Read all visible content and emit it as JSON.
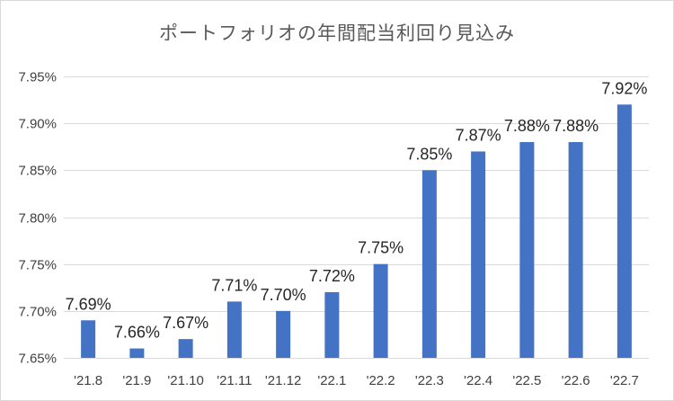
{
  "chart_data": {
    "type": "bar",
    "title": "ポートフォリオの年間配当利回り見込み",
    "categories": [
      "'21.8",
      "'21.9",
      "'21.10",
      "'21.11",
      "'21.12",
      "'22.1",
      "'22.2",
      "'22.3",
      "'22.4",
      "'22.5",
      "'22.6",
      "'22.7"
    ],
    "values": [
      7.69,
      7.66,
      7.67,
      7.71,
      7.7,
      7.72,
      7.75,
      7.85,
      7.87,
      7.88,
      7.88,
      7.92
    ],
    "data_labels": [
      "7.69%",
      "7.66%",
      "7.67%",
      "7.71%",
      "7.70%",
      "7.72%",
      "7.75%",
      "7.85%",
      "7.87%",
      "7.88%",
      "7.88%",
      "7.92%"
    ],
    "ylim": [
      7.65,
      7.95
    ],
    "yticks": [
      7.65,
      7.7,
      7.75,
      7.8,
      7.85,
      7.9,
      7.95
    ],
    "ytick_labels": [
      "7.65%",
      "7.70%",
      "7.75%",
      "7.80%",
      "7.85%",
      "7.90%",
      "7.95%"
    ],
    "xlabel": "",
    "ylabel": "",
    "grid": true,
    "legend": false,
    "bar_color": "#4472c4"
  }
}
